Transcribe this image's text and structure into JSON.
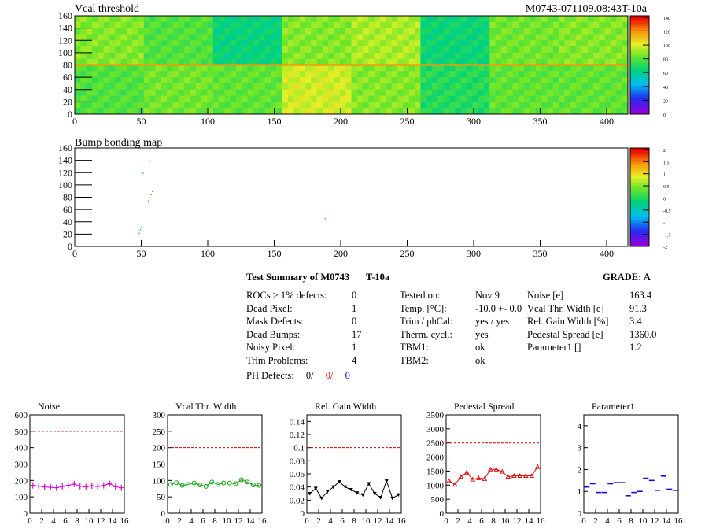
{
  "header": {
    "left_title": "Vcal threshold",
    "right_title": "M0743-071109.08:43T-10a"
  },
  "vcal_map": {
    "title": "Vcal threshold",
    "x_ticks": [
      "0",
      "50",
      "100",
      "150",
      "200",
      "250",
      "300",
      "350",
      "400"
    ],
    "y_ticks": [
      "0",
      "20",
      "40",
      "60",
      "80",
      "100",
      "120",
      "140",
      "160"
    ],
    "palette_labels": [
      "0",
      "20",
      "40",
      "60",
      "80",
      "100",
      "120",
      "140"
    ]
  },
  "bump_map": {
    "title": "Bump bonding map",
    "x_ticks": [
      "0",
      "50",
      "100",
      "150",
      "200",
      "250",
      "300",
      "350",
      "400"
    ],
    "y_ticks": [
      "0",
      "20",
      "40",
      "60",
      "80",
      "100",
      "120",
      "140",
      "160"
    ],
    "palette_labels": [
      "-2",
      "-1.5",
      "-1",
      "-0.5",
      "0",
      "0.5",
      "1",
      "1.5",
      "2"
    ]
  },
  "summary": {
    "title": "Test Summary of M0743",
    "tag": "T-10a",
    "grade_label": "GRADE:  A",
    "defects": [
      {
        "label": "ROCs > 1% defects:",
        "value": "0"
      },
      {
        "label": "Dead Pixel:",
        "value": "1"
      },
      {
        "label": "Mask Defects:",
        "value": "0"
      },
      {
        "label": "Dead Bumps:",
        "value": "17"
      },
      {
        "label": "Noisy Pixel:",
        "value": "1"
      },
      {
        "label": "Trim Problems:",
        "value": "4"
      }
    ],
    "ph_defects": {
      "label": "PH Defects:",
      "v1": "0/",
      "v2": "0/",
      "v3": "0"
    },
    "conditions": [
      {
        "label": "Tested on:",
        "value": "Nov 9"
      },
      {
        "label": "Temp. [°C]:",
        "value": "-10.0 +- 0.0"
      },
      {
        "label": "Trim / phCal:",
        "value": "yes / yes"
      },
      {
        "label": "Therm. cycl.:",
        "value": "yes"
      },
      {
        "label": "TBM1:",
        "value": "ok"
      },
      {
        "label": "TBM2:",
        "value": "ok"
      }
    ],
    "results": [
      {
        "label": "Noise [e]",
        "value": "163.4"
      },
      {
        "label": "Vcal Thr. Width [e]",
        "value": "91.3"
      },
      {
        "label": "Rel. Gain Width [%]",
        "value": "3.4"
      },
      {
        "label": "Pedestal Spread [e]",
        "value": "1360.0"
      },
      {
        "label": "Parameter1 []",
        "value": "1.2"
      }
    ]
  },
  "chart_data": [
    {
      "type": "line",
      "title": "Noise",
      "color": "#d010d0",
      "marker": "bar",
      "x": [
        0,
        1,
        2,
        3,
        4,
        5,
        6,
        7,
        8,
        9,
        10,
        11,
        12,
        13,
        14,
        15
      ],
      "values": [
        170,
        165,
        160,
        158,
        155,
        163,
        170,
        178,
        165,
        160,
        168,
        163,
        170,
        180,
        162,
        155
      ],
      "ylim": [
        0,
        600
      ],
      "xlim": [
        0,
        16
      ],
      "threshold": 500,
      "yticks": [
        "0",
        "100",
        "200",
        "300",
        "400",
        "500",
        "600"
      ],
      "xticks": [
        "0",
        "2",
        "4",
        "6",
        "8",
        "10",
        "12",
        "14",
        "16"
      ]
    },
    {
      "type": "line",
      "title": "Vcal Thr. Width",
      "color": "#10a010",
      "marker": "circle",
      "x": [
        0,
        1,
        2,
        3,
        4,
        5,
        6,
        7,
        8,
        9,
        10,
        11,
        12,
        13,
        14,
        15
      ],
      "values": [
        88,
        93,
        85,
        88,
        92,
        86,
        82,
        95,
        88,
        92,
        92,
        90,
        102,
        95,
        86,
        85
      ],
      "ylim": [
        0,
        300
      ],
      "xlim": [
        0,
        16
      ],
      "threshold": 200,
      "yticks": [
        "0",
        "50",
        "100",
        "150",
        "200",
        "250",
        "300"
      ],
      "xticks": [
        "0",
        "2",
        "4",
        "6",
        "8",
        "10",
        "12",
        "14",
        "16"
      ]
    },
    {
      "type": "line",
      "title": "Rel. Gain Width",
      "color": "#000000",
      "marker": "triangle",
      "x": [
        0,
        1,
        2,
        3,
        4,
        5,
        6,
        7,
        8,
        9,
        10,
        11,
        12,
        13,
        14,
        15
      ],
      "values": [
        0.03,
        0.038,
        0.023,
        0.033,
        0.04,
        0.048,
        0.04,
        0.036,
        0.031,
        0.028,
        0.045,
        0.03,
        0.024,
        0.049,
        0.023,
        0.028
      ],
      "ylim": [
        0,
        0.15
      ],
      "xlim": [
        0,
        16
      ],
      "threshold": 0.1,
      "yticks": [
        "0",
        "0.02",
        "0.04",
        "0.06",
        "0.08",
        "0.1",
        "0.12",
        "0.14"
      ],
      "xticks": [
        "0",
        "2",
        "4",
        "6",
        "8",
        "10",
        "12",
        "14",
        "16"
      ]
    },
    {
      "type": "line",
      "title": "Pedestal Spread",
      "color": "#e01010",
      "marker": "triangle-open",
      "x": [
        0,
        1,
        2,
        3,
        4,
        5,
        6,
        7,
        8,
        9,
        10,
        11,
        12,
        13,
        14,
        15
      ],
      "values": [
        1150,
        1020,
        1300,
        1450,
        1200,
        1250,
        1220,
        1560,
        1560,
        1480,
        1300,
        1330,
        1330,
        1330,
        1330,
        1650
      ],
      "ylim": [
        0,
        3500
      ],
      "xlim": [
        0,
        16
      ],
      "threshold": 2500,
      "yticks": [
        "0",
        "500",
        "1000",
        "1500",
        "2000",
        "2500",
        "3000",
        "3500"
      ],
      "xticks": [
        "0",
        "2",
        "4",
        "6",
        "8",
        "10",
        "12",
        "14",
        "16"
      ]
    },
    {
      "type": "scatter",
      "title": "Parameter1",
      "color": "#1010d0",
      "marker": "hbar",
      "x": [
        0,
        1,
        2,
        3,
        4,
        5,
        6,
        7,
        8,
        9,
        10,
        11,
        12,
        13,
        14,
        15
      ],
      "values": [
        1.2,
        1.35,
        0.95,
        0.95,
        1.35,
        1.4,
        1.4,
        0.8,
        0.95,
        1.0,
        1.6,
        1.5,
        1.05,
        1.7,
        1.1,
        1.05
      ],
      "ylim": [
        0,
        4.5
      ],
      "xlim": [
        0,
        16
      ],
      "yticks": [
        "0",
        "1",
        "2",
        "3",
        "4"
      ],
      "xticks": [
        "0",
        "2",
        "4",
        "6",
        "8",
        "10",
        "12",
        "14",
        "16"
      ]
    }
  ]
}
